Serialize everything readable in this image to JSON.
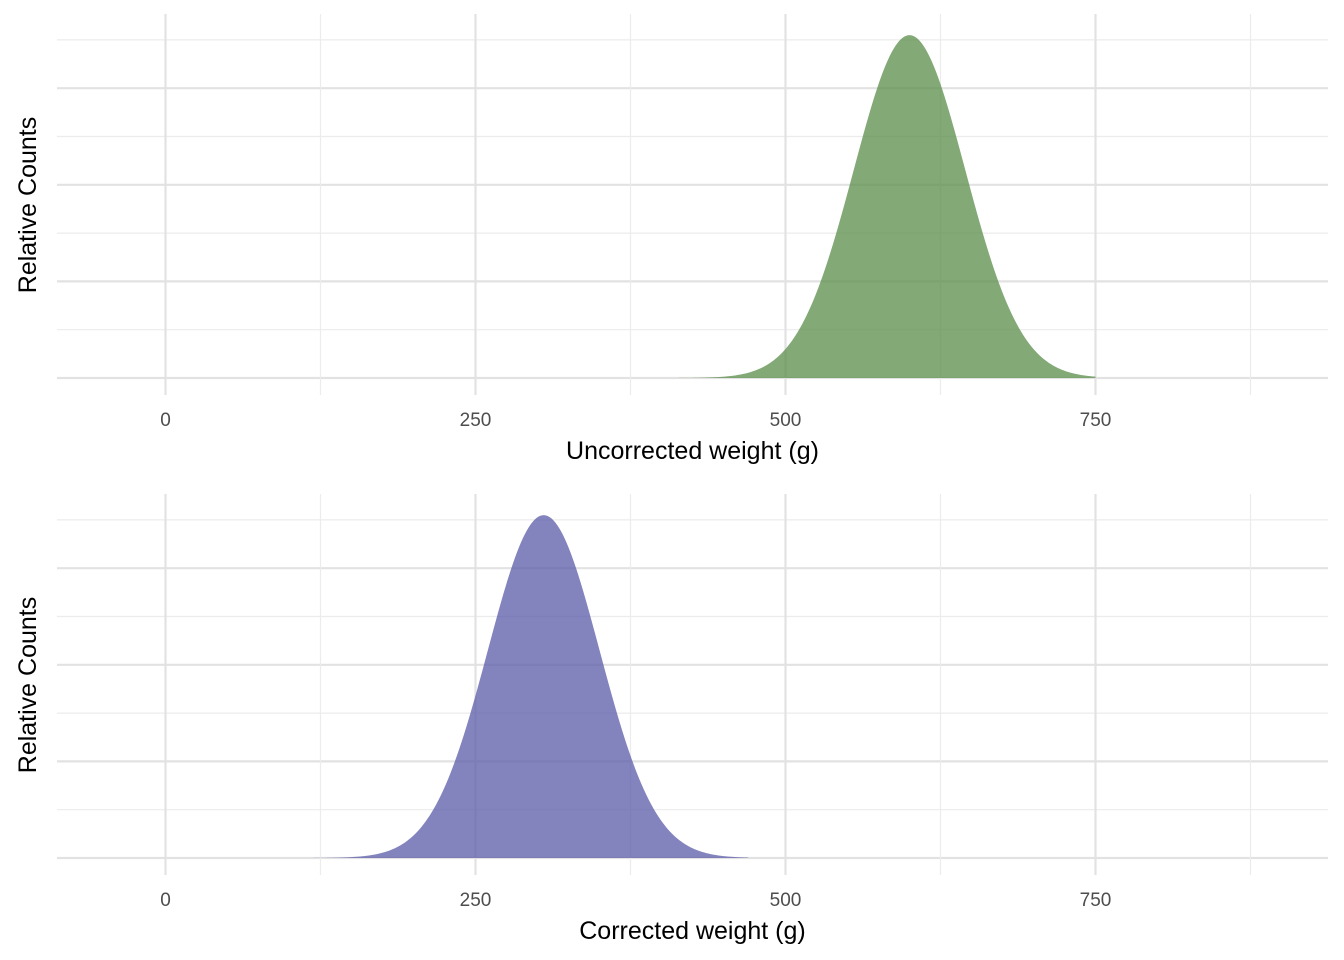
{
  "chart_data": [
    {
      "type": "area",
      "title": "",
      "xlabel": "Uncorrected weight (g)",
      "ylabel": "Relative Counts",
      "xlim": [
        -87.5,
        937.5
      ],
      "ylim": [
        0,
        1.05
      ],
      "x_ticks": [
        0,
        250,
        500,
        750
      ],
      "x_minor_ticks": [
        125,
        375,
        625,
        875
      ],
      "y_tick_labels": [],
      "grid": true,
      "fill_color": "#5a8c4a",
      "fill_opacity": 0.75,
      "series": [
        {
          "distribution": "normal",
          "mean": 600,
          "sd": 45,
          "x_range": [
            400,
            750
          ],
          "peak_relative_count": 1.0
        }
      ]
    },
    {
      "type": "area",
      "title": "",
      "xlabel": "Corrected weight (g)",
      "ylabel": "Relative Counts",
      "xlim": [
        -87.5,
        937.5
      ],
      "ylim": [
        0,
        1.05
      ],
      "x_ticks": [
        0,
        250,
        500,
        750
      ],
      "x_minor_ticks": [
        125,
        375,
        625,
        875
      ],
      "y_tick_labels": [],
      "grid": true,
      "fill_color": "#5a5aa8",
      "fill_opacity": 0.75,
      "series": [
        {
          "distribution": "normal",
          "mean": 305,
          "sd": 45,
          "x_range": [
            100,
            470
          ],
          "peak_relative_count": 1.0
        }
      ]
    }
  ]
}
